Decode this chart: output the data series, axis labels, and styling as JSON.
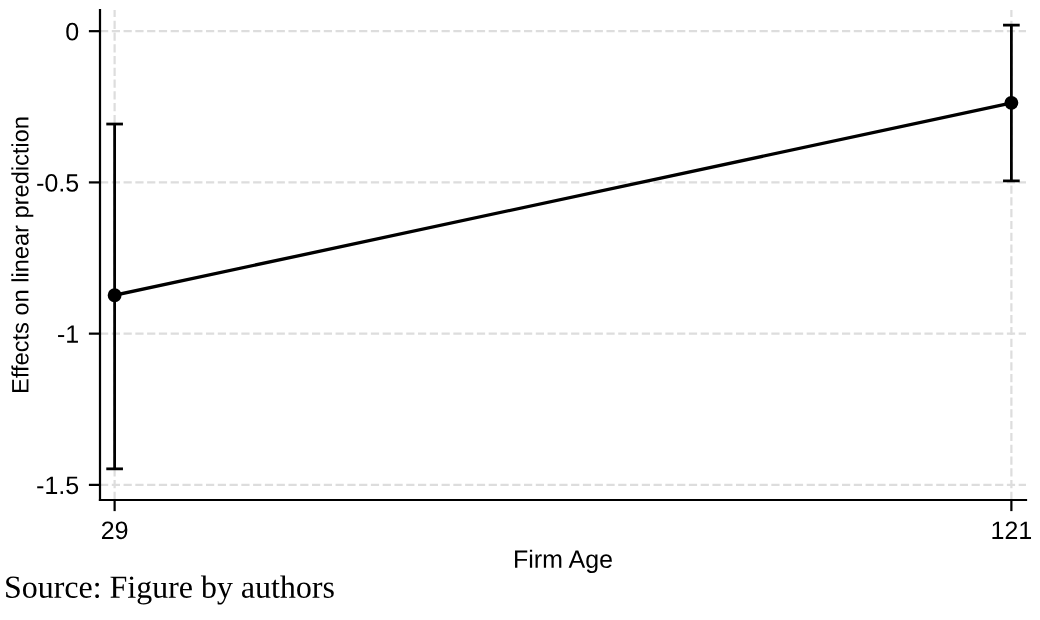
{
  "chart_data": {
    "type": "line",
    "x": [
      29,
      121
    ],
    "values": [
      -0.873,
      -0.237
    ],
    "errors": [
      [
        -1.447,
        -0.307
      ],
      [
        -0.495,
        0.02
      ]
    ],
    "color": "#000000",
    "marker": "circle",
    "line_style": "solid",
    "xlabel": "Firm Age",
    "ylabel": "Effects on linear prediction",
    "xlim": [
      27.5,
      122.5
    ],
    "xticks": [
      29,
      121
    ],
    "ylim": [
      -1.55,
      0.07
    ],
    "yticks": [
      0,
      -0.5,
      -1,
      -1.5
    ],
    "grid": true,
    "annotations": [
      "Source: Figure by authors"
    ]
  }
}
